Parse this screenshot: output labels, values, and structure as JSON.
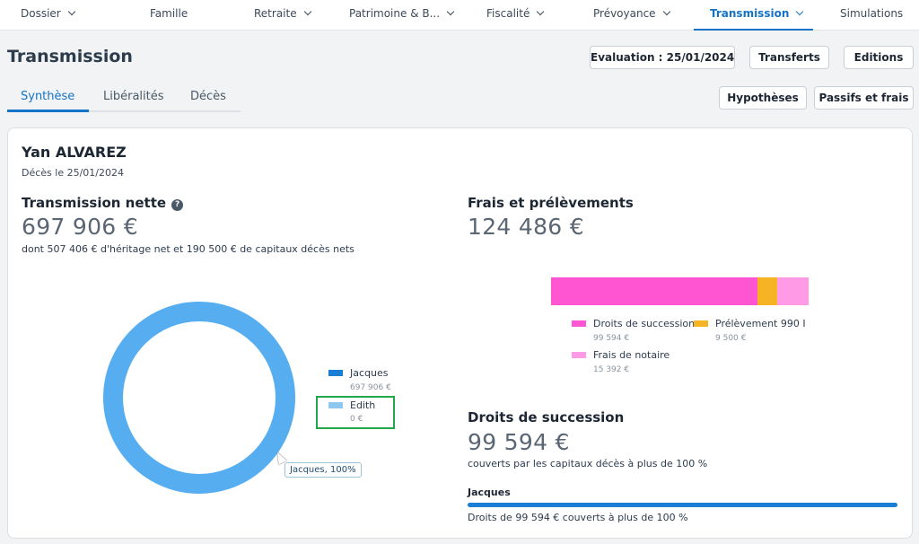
{
  "nav": {
    "items": [
      {
        "label": "Dossier",
        "chevron": true,
        "active": false
      },
      {
        "label": "Famille",
        "chevron": false,
        "active": false
      },
      {
        "label": "Retraite",
        "chevron": true,
        "active": false
      },
      {
        "label": "Patrimoine & B...",
        "chevron": true,
        "active": false
      },
      {
        "label": "Fiscalité",
        "chevron": true,
        "active": false
      },
      {
        "label": "Prévoyance",
        "chevron": true,
        "active": false
      },
      {
        "label": "Transmission",
        "chevron": true,
        "active": true
      },
      {
        "label": "Simulations",
        "chevron": false,
        "active": false
      }
    ]
  },
  "page": {
    "title": "Transmission"
  },
  "header_buttons": {
    "evaluation": "Evaluation : 25/01/2024",
    "transferts": "Transferts",
    "editions": "Editions",
    "hypotheses": "Hypothèses",
    "passifs": "Passifs et frais"
  },
  "tabs": [
    {
      "label": "Synthèse",
      "active": true
    },
    {
      "label": "Libéralités",
      "active": false
    },
    {
      "label": "Décès",
      "active": false
    }
  ],
  "person": {
    "name": "Yan ALVAREZ",
    "deces": "Décès le 25/01/2024"
  },
  "transmission": {
    "title": "Transmission nette",
    "help_icon": "?",
    "amount": "697 906 €",
    "desc": "dont 507 406 € d'héritage net et 190 500 € de capitaux décès nets"
  },
  "donut": {
    "legend": [
      {
        "label": "Jacques",
        "value": "697 906 €",
        "color": "#1a7fd4"
      },
      {
        "label": "Edith",
        "value": "0 €",
        "color": "#8ec7f0"
      }
    ],
    "ring_color": "#56aef0",
    "tooltip": "Jacques, 100%"
  },
  "frais": {
    "title": "Frais et prélèvements",
    "amount": "124 486 €",
    "bar": [
      {
        "label": "Droits de succession",
        "value": "99 594 €",
        "amount": 99594,
        "color": "#ff55d2"
      },
      {
        "label": "Prélèvement 990 I",
        "value": "9 500 €",
        "amount": 9500,
        "color": "#f6b323"
      },
      {
        "label": "Frais de notaire",
        "value": "15 392 €",
        "amount": 15392,
        "color": "#ff9be6"
      }
    ]
  },
  "droits": {
    "title": "Droits de succession",
    "amount": "99 594 €",
    "desc": "couverts par les capitaux décès à plus de 100 %",
    "heir": "Jacques",
    "coverage_percent": 100,
    "heir_desc": "Droits de 99 594 € couverts à plus de 100 %"
  }
}
